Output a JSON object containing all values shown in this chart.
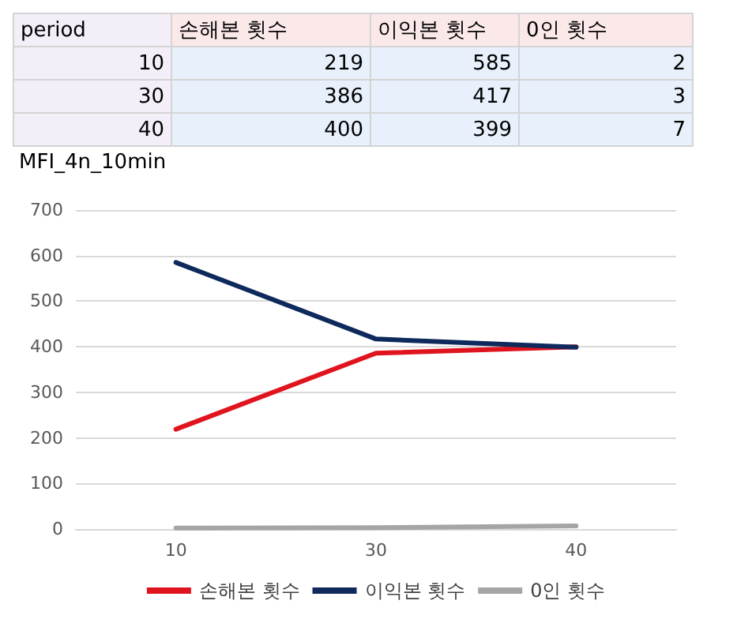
{
  "chart_data": [
    {
      "type": "other",
      "xlabel": "period",
      "categories": [
        "10",
        "30",
        "40"
      ],
      "data_labels": true,
      "series": [
        {
          "name": "손해본 횟수",
          "values": [
            219,
            386,
            400
          ]
        },
        {
          "name": "이익본 횟수",
          "values": [
            585,
            417,
            399
          ]
        },
        {
          "name": "0인 횟수",
          "values": [
            2,
            3,
            7
          ]
        }
      ]
    },
    {
      "type": "line",
      "categories": [
        "10",
        "30",
        "40"
      ],
      "series": [
        {
          "name": "손해본 횟수",
          "color": "#e0141e",
          "values": [
            219,
            386,
            400
          ]
        },
        {
          "name": "이익본 횟수",
          "color": "#0e2a5c",
          "values": [
            585,
            417,
            399
          ]
        },
        {
          "name": "0인 횟수",
          "color": "#a5a5a5",
          "values": [
            2,
            3,
            7
          ]
        }
      ],
      "ylim": [
        0,
        700
      ],
      "yticks": [
        0,
        100,
        200,
        300,
        400,
        500,
        600,
        700
      ],
      "grid": "y",
      "legend": "bottom",
      "marker": "none",
      "line_style": "solid",
      "annotations": [
        "MFI_4n_10min"
      ]
    }
  ]
}
